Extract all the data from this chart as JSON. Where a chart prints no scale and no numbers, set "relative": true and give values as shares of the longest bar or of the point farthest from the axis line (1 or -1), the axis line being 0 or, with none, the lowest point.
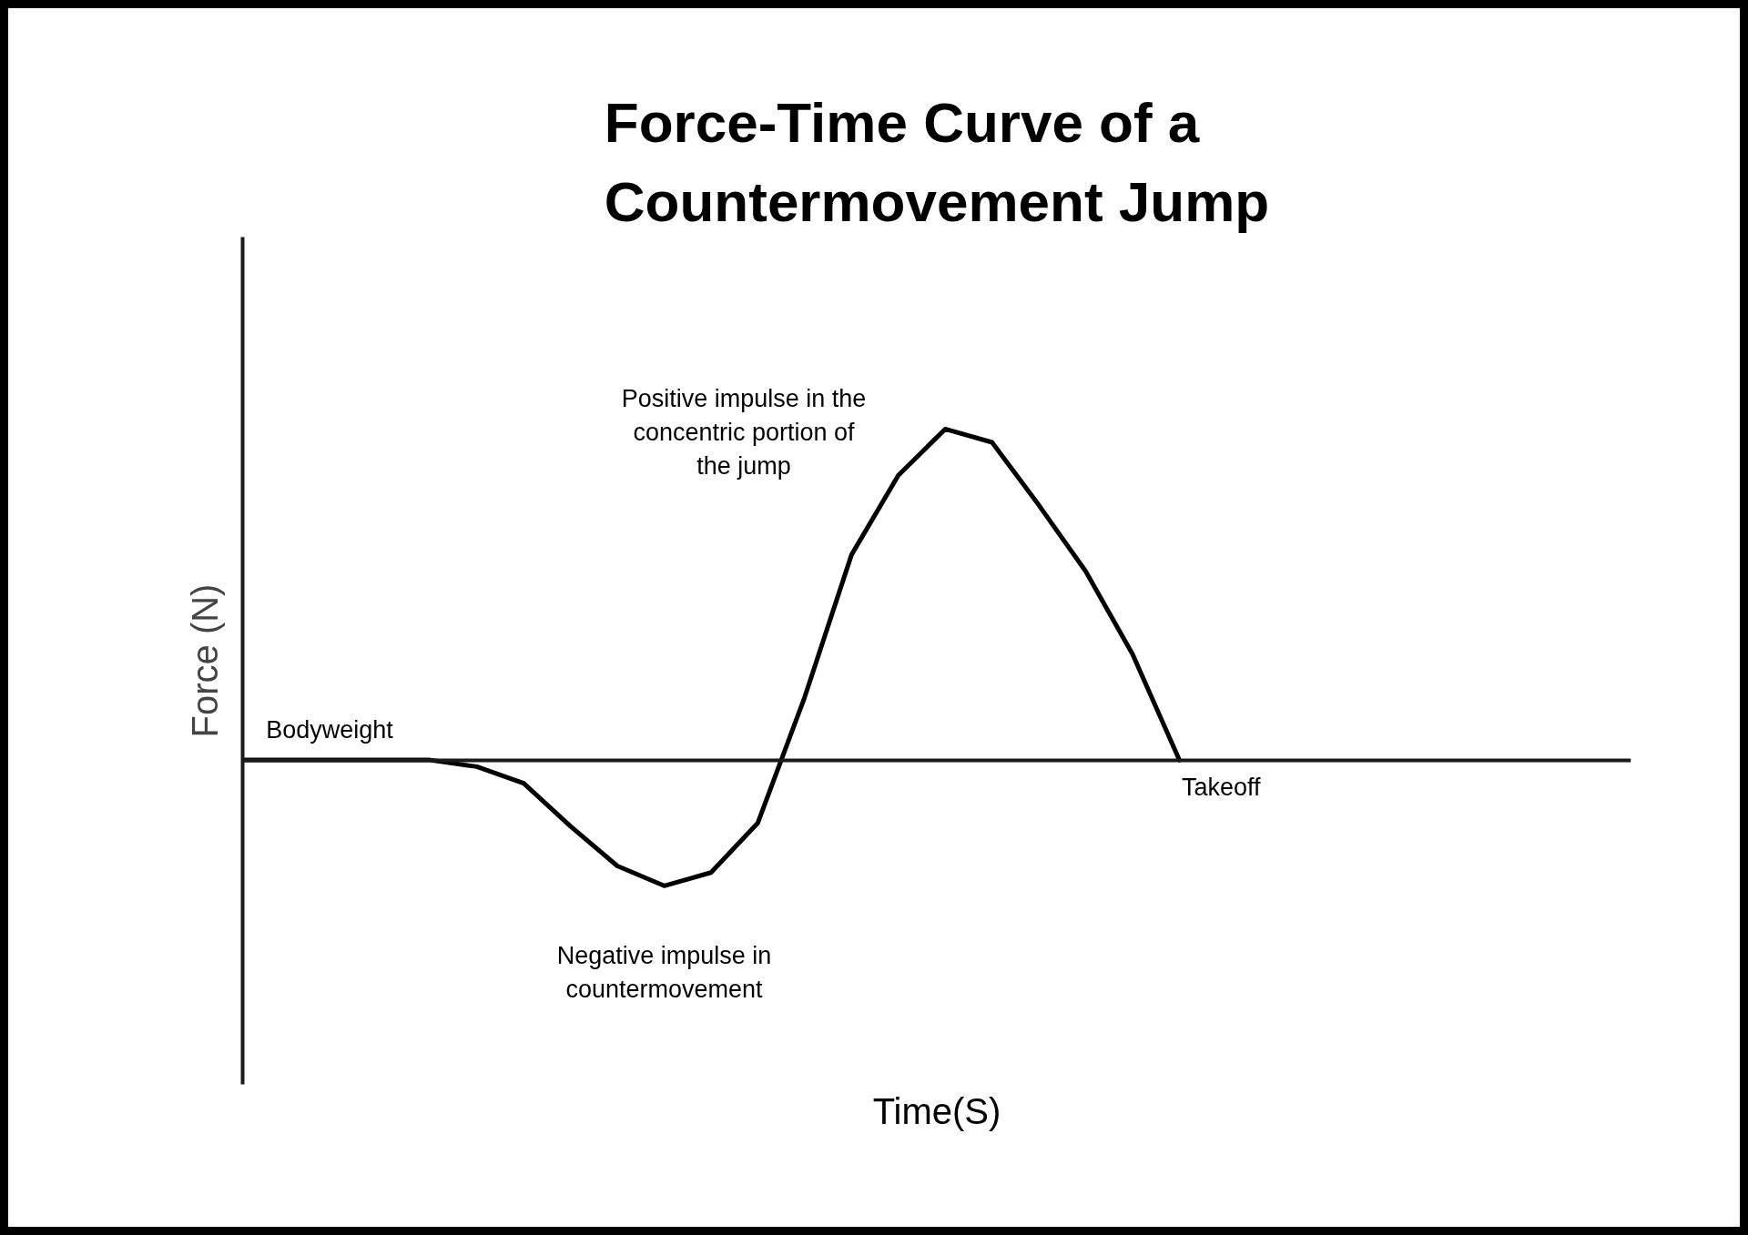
{
  "chart_data": {
    "type": "line",
    "title": "Force-Time Curve of a Countermovement Jump",
    "ylabel": "Force (N)",
    "relative": true,
    "categories": [
      null,
      null,
      null,
      null,
      null,
      null,
      null,
      null,
      null,
      null,
      null,
      null,
      null,
      null,
      null,
      null,
      null,
      null,
      null,
      null,
      null
    ],
    "series": [
      {
        "color": "#000000",
        "values": [
          0,
          0,
          0,
          0,
          0,
          -0.02,
          -0.07,
          -0.2,
          -0.32,
          -0.38,
          -0.34,
          -0.19,
          0.19,
          0.62,
          0.86,
          1,
          0.96,
          0.77,
          0.57,
          0.32,
          0
        ]
      }
    ],
    "annotations": [
      "Bodyweight",
      "Negative impulse in countermovement",
      "Positive impulse in the concentric portion of the jump",
      "Takeoff",
      "Time(S)"
    ],
    "grid": false,
    "marker": "none",
    "line_style": "solid"
  }
}
